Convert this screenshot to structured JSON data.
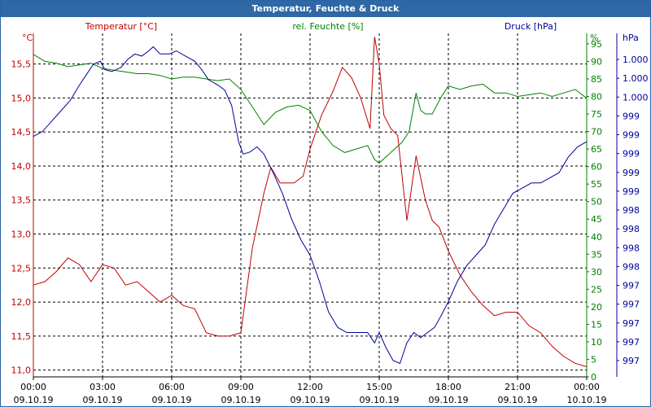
{
  "window": {
    "title": "Temperatur, Feuchte & Druck"
  },
  "chart_data": {
    "type": "line",
    "title": "Temperatur, Feuchte & Druck",
    "colors": {
      "temperature": "#c00000",
      "humidity": "#008000",
      "pressure": "#000099",
      "grid": "#000000",
      "background": "#ffffff",
      "titlebar": "#2f68a4"
    },
    "axes": {
      "left": {
        "series_label": "Temperatur [°C]",
        "unit": "°C",
        "ylim": [
          10.9,
          15.95
        ],
        "ticks": [
          11.0,
          11.5,
          12.0,
          12.5,
          13.0,
          13.5,
          14.0,
          14.5,
          15.0,
          15.5
        ],
        "tick_labels": [
          "11,0",
          "11,5",
          "12,0",
          "12,5",
          "13,0",
          "13,5",
          "14,0",
          "14,5",
          "15,0",
          "15,5"
        ]
      },
      "right1": {
        "series_label": "rel. Feuchte [%]",
        "unit": "%",
        "ylim": [
          0,
          98
        ],
        "ticks": [
          0,
          5,
          10,
          15,
          20,
          25,
          30,
          35,
          40,
          45,
          50,
          55,
          60,
          65,
          70,
          75,
          80,
          85,
          90,
          95
        ],
        "tick_labels": [
          "0",
          "5",
          "10",
          "15",
          "20",
          "25",
          "30",
          "35",
          "40",
          "45",
          "50",
          "55",
          "60",
          "65",
          "70",
          "75",
          "80",
          "85",
          "90",
          "95"
        ]
      },
      "right2": {
        "series_label": "Druck [hPa]",
        "unit": "hPa",
        "ylim": [
          996.82,
          1000.15
        ],
        "tick_labels": [
          "1.000",
          "1.000",
          "1.000",
          "999",
          "999",
          "999",
          "999",
          "999",
          "998",
          "998",
          "998",
          "998",
          "997",
          "997",
          "997",
          "997",
          "997"
        ]
      },
      "x": {
        "xlim": [
          0,
          24
        ],
        "ticks": [
          0,
          3,
          6,
          9,
          12,
          15,
          18,
          21,
          24
        ],
        "time_labels": [
          "00:00",
          "03:00",
          "06:00",
          "09:00",
          "12:00",
          "15:00",
          "18:00",
          "21:00",
          "00:00"
        ],
        "date_labels": [
          "09.10.19",
          "09.10.19",
          "09.10.19",
          "09.10.19",
          "09.10.19",
          "09.10.19",
          "09.10.19",
          "09.10.19",
          "10.10.19"
        ]
      }
    },
    "series": [
      {
        "name": "Temperatur",
        "unit": "°C",
        "axis": "left",
        "x": [
          0,
          0.5,
          1.0,
          1.5,
          2.0,
          2.5,
          3.0,
          3.5,
          4.0,
          4.5,
          5.0,
          5.5,
          6.0,
          6.5,
          7.0,
          7.5,
          8.0,
          8.5,
          9.0,
          9.5,
          10.0,
          10.3,
          10.7,
          11.3,
          11.7,
          12.0,
          12.5,
          13.0,
          13.4,
          13.8,
          14.2,
          14.6,
          14.8,
          15.0,
          15.2,
          15.5,
          15.8,
          16.2,
          16.6,
          17.0,
          17.3,
          17.6,
          18.0,
          18.5,
          19.0,
          19.5,
          20.0,
          20.5,
          21.0,
          21.5,
          22.0,
          22.5,
          23.0,
          23.5,
          24.0
        ],
        "values": [
          12.25,
          12.3,
          12.45,
          12.65,
          12.55,
          12.3,
          12.55,
          12.5,
          12.25,
          12.3,
          12.15,
          12.0,
          12.1,
          11.95,
          11.9,
          11.55,
          11.5,
          11.5,
          11.55,
          12.8,
          13.6,
          13.98,
          13.75,
          13.75,
          13.85,
          14.25,
          14.75,
          15.1,
          15.45,
          15.3,
          15.0,
          14.55,
          15.9,
          15.5,
          14.75,
          14.55,
          14.45,
          13.2,
          14.15,
          13.5,
          13.2,
          13.1,
          12.75,
          12.4,
          12.15,
          11.95,
          11.8,
          11.85,
          11.85,
          11.65,
          11.55,
          11.35,
          11.2,
          11.1,
          11.05
        ]
      },
      {
        "name": "rel. Feuchte",
        "unit": "%",
        "axis": "right1",
        "x": [
          0,
          0.5,
          1.0,
          1.5,
          2.0,
          2.5,
          3.0,
          3.5,
          4.0,
          4.5,
          5.0,
          5.5,
          6.0,
          6.5,
          7.0,
          7.5,
          8.0,
          8.5,
          9.0,
          9.5,
          10.0,
          10.5,
          11.0,
          11.5,
          12.0,
          12.5,
          13.0,
          13.5,
          14.0,
          14.5,
          14.8,
          15.0,
          15.5,
          16.0,
          16.3,
          16.6,
          16.8,
          17.0,
          17.3,
          17.7,
          18.0,
          18.5,
          19.0,
          19.5,
          20.0,
          20.5,
          21.0,
          21.5,
          22.0,
          22.5,
          23.0,
          23.5,
          24.0
        ],
        "values": [
          92,
          90,
          89.5,
          88.5,
          89,
          89.5,
          88,
          87.5,
          87,
          86.5,
          86.5,
          86,
          85,
          85.5,
          85.5,
          85,
          84.5,
          85,
          82,
          77,
          72,
          75.5,
          77,
          77.5,
          76,
          70,
          66,
          64,
          65,
          66,
          62,
          61,
          64,
          67,
          70,
          81,
          76,
          75,
          75,
          80,
          83,
          82,
          83,
          83.5,
          81,
          81,
          80,
          80.5,
          81,
          80,
          81,
          82,
          79.5
        ]
      },
      {
        "name": "Druck",
        "unit": "hPa",
        "axis": "right2",
        "x": [
          0,
          0.4,
          0.8,
          1.2,
          1.6,
          2.0,
          2.3,
          2.6,
          2.9,
          3.1,
          3.4,
          3.8,
          4.1,
          4.4,
          4.7,
          5.0,
          5.2,
          5.5,
          5.9,
          6.2,
          6.6,
          7.0,
          7.3,
          7.6,
          8.0,
          8.3,
          8.6,
          8.9,
          9.1,
          9.4,
          9.7,
          10.0,
          10.4,
          10.8,
          11.2,
          11.6,
          12.0,
          12.4,
          12.8,
          13.2,
          13.6,
          14.0,
          14.5,
          14.8,
          15.0,
          15.3,
          15.6,
          15.9,
          16.2,
          16.5,
          16.8,
          17.1,
          17.4,
          17.7,
          18.0,
          18.4,
          18.8,
          19.2,
          19.6,
          20.0,
          20.4,
          20.8,
          21.2,
          21.6,
          22.0,
          22.4,
          22.8,
          23.2,
          23.6,
          24.0
        ],
        "values": [
          999.15,
          999.2,
          999.3,
          999.4,
          999.5,
          999.65,
          999.75,
          999.85,
          999.88,
          999.8,
          999.78,
          999.82,
          999.9,
          999.95,
          999.93,
          999.98,
          1000.02,
          999.95,
          999.95,
          999.98,
          999.93,
          999.88,
          999.8,
          999.7,
          999.65,
          999.6,
          999.45,
          999.1,
          998.98,
          999.0,
          999.05,
          998.98,
          998.8,
          998.6,
          998.35,
          998.15,
          998.0,
          997.75,
          997.45,
          997.3,
          997.25,
          997.25,
          997.25,
          997.15,
          997.25,
          997.1,
          996.98,
          996.95,
          997.15,
          997.25,
          997.2,
          997.25,
          997.3,
          997.42,
          997.55,
          997.75,
          997.9,
          998.0,
          998.1,
          998.3,
          998.45,
          998.6,
          998.65,
          998.7,
          998.7,
          998.75,
          998.8,
          998.95,
          999.05,
          999.1
        ]
      }
    ]
  }
}
